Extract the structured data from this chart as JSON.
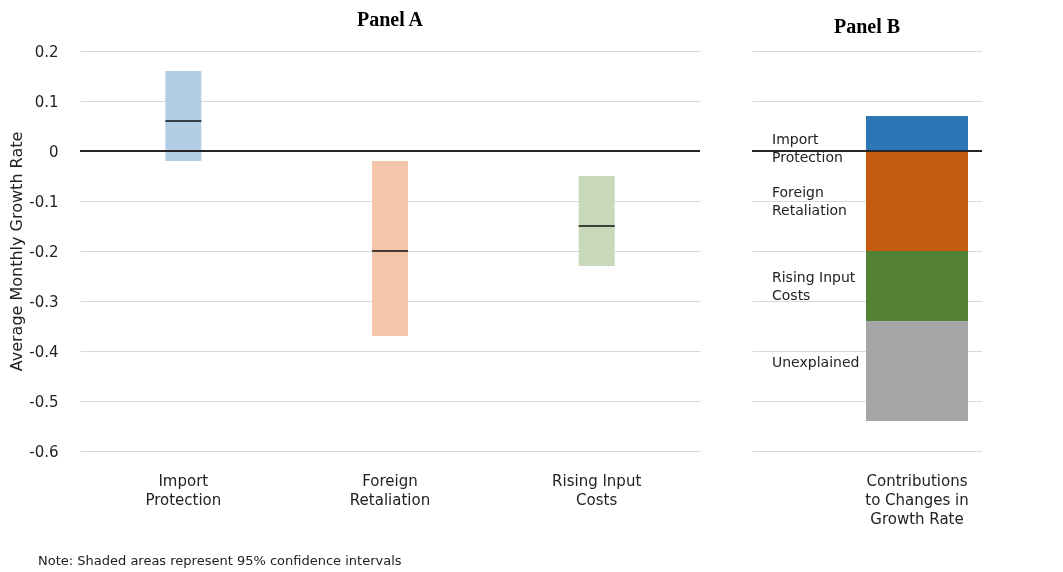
{
  "chart_data": [
    {
      "type": "box",
      "title": "Panel A",
      "ylabel": "Average Monthly Growth Rate",
      "categories": [
        "Import Protection",
        "Foreign Retaliation",
        "Rising Input Costs"
      ],
      "boxes": [
        {
          "low": -0.02,
          "q1": -0.02,
          "median": 0.06,
          "q3": 0.16,
          "high": 0.16
        },
        {
          "low": -0.37,
          "q1": -0.37,
          "median": -0.2,
          "q3": -0.02,
          "high": -0.02
        },
        {
          "low": -0.23,
          "q1": -0.23,
          "median": -0.15,
          "q3": -0.05,
          "high": -0.05
        }
      ],
      "colors": [
        "#b4cde6",
        "#f3c5a9",
        "#c8d9bb"
      ],
      "ylim": [
        -0.6,
        0.2
      ],
      "yticks": [
        -0.6,
        -0.5,
        -0.4,
        -0.3,
        -0.2,
        -0.1,
        0,
        0.1,
        0.2
      ],
      "grid": "y",
      "ref_lines": [
        {
          "axis": "y",
          "value": 0,
          "color": "#262626"
        }
      ],
      "annotations": [
        "Note: Shaded areas represent 95% confidence intervals"
      ]
    },
    {
      "type": "bar",
      "title": "Panel B",
      "stacked": true,
      "categories": [
        "Contributions to Changes in Growth Rate"
      ],
      "series": [
        {
          "name": "Import Protection",
          "color": "#2e75b6",
          "values": [
            0.07
          ]
        },
        {
          "name": "Foreign Retaliation",
          "color": "#c55a11",
          "values": [
            -0.2
          ]
        },
        {
          "name": "Rising Input Costs",
          "color": "#548235",
          "values": [
            -0.14
          ]
        },
        {
          "name": "Unexplained",
          "color": "#a5a5a5",
          "values": [
            -0.2
          ]
        }
      ],
      "ylim": [
        -0.6,
        0.2
      ],
      "yticks": [
        -0.6,
        -0.5,
        -0.4,
        -0.3,
        -0.2,
        -0.1,
        0,
        0.1,
        0.2
      ],
      "grid": "y",
      "tick_labels": "x",
      "ref_lines": [
        {
          "axis": "y",
          "value": 0,
          "color": "#262626"
        }
      ]
    }
  ]
}
